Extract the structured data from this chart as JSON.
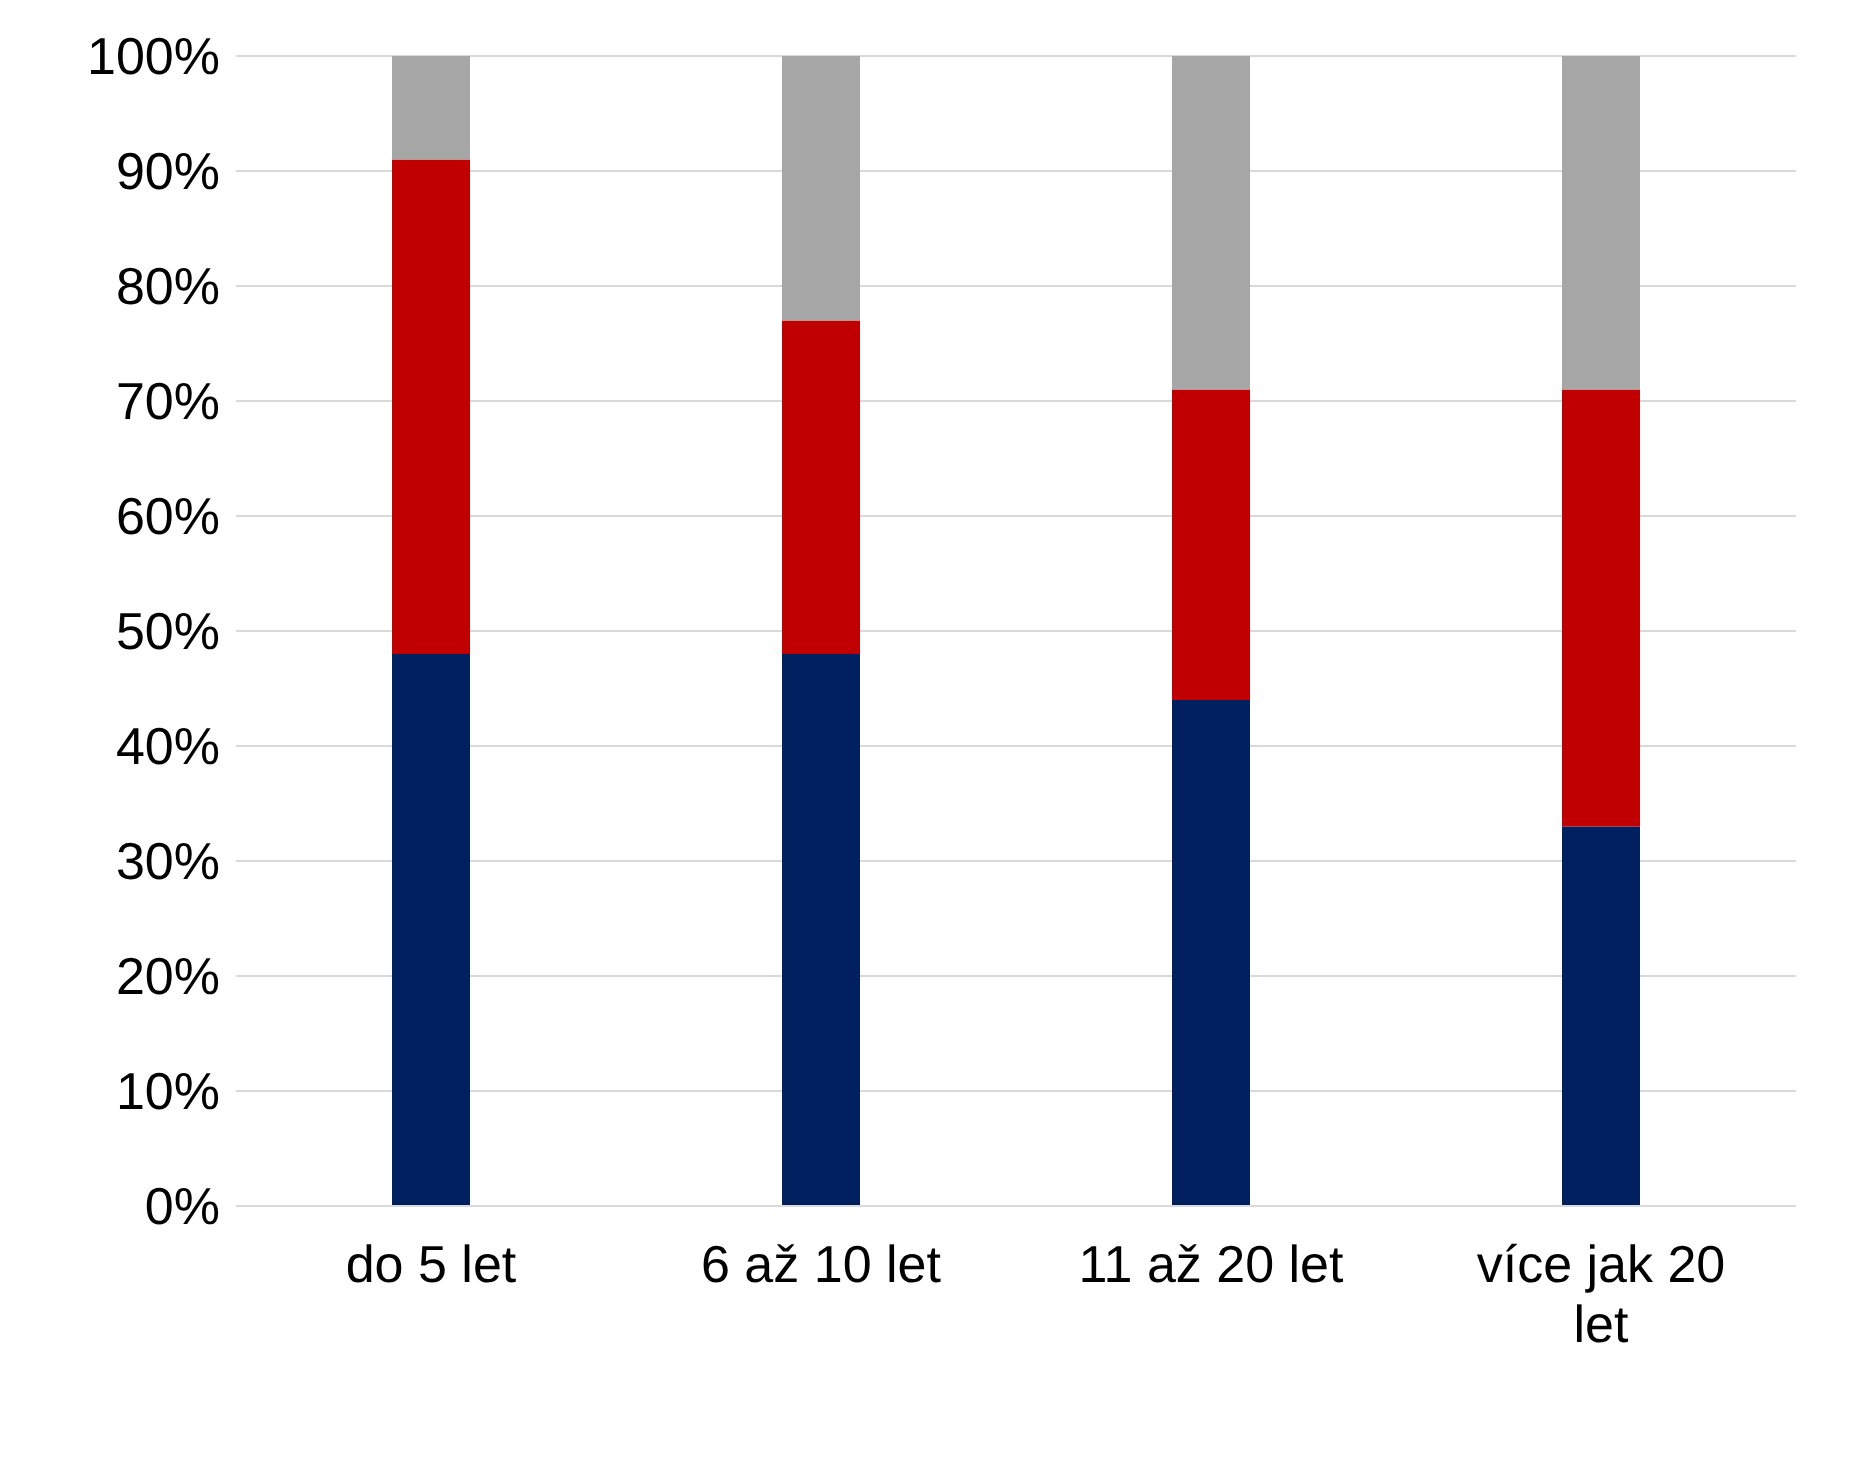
{
  "chart_data": {
    "type": "bar",
    "stacked": true,
    "categories": [
      "do 5 let",
      "6 až 10 let",
      "11 až 20 let",
      "více jak 20 let"
    ],
    "series": [
      {
        "color": "#002060",
        "values": [
          48,
          48,
          44,
          33
        ]
      },
      {
        "color": "#c00000",
        "values": [
          43,
          29,
          27,
          38
        ]
      },
      {
        "color": "#a6a6a6",
        "values": [
          9,
          23,
          29,
          29
        ]
      }
    ],
    "ylim": [
      0,
      100
    ],
    "yticks": [
      {
        "value": 0,
        "label": "0%"
      },
      {
        "value": 10,
        "label": "10%"
      },
      {
        "value": 20,
        "label": "20%"
      },
      {
        "value": 30,
        "label": "30%"
      },
      {
        "value": 40,
        "label": "40%"
      },
      {
        "value": 50,
        "label": "50%"
      },
      {
        "value": 60,
        "label": "60%"
      },
      {
        "value": 70,
        "label": "70%"
      },
      {
        "value": 80,
        "label": "80%"
      },
      {
        "value": 90,
        "label": "90%"
      },
      {
        "value": 100,
        "label": "100%"
      }
    ],
    "grid": "y",
    "legend": false
  }
}
